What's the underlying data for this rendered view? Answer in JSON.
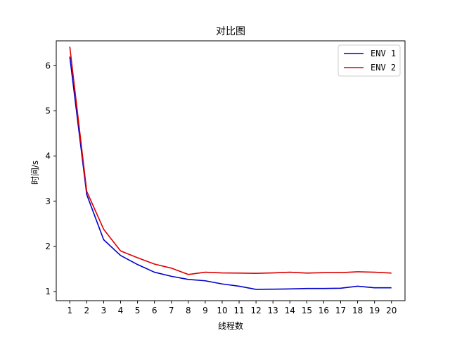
{
  "chart_data": {
    "type": "line",
    "title": "对比图",
    "xlabel": "线程数",
    "ylabel": "时间/s",
    "x": [
      1,
      2,
      3,
      4,
      5,
      6,
      7,
      8,
      9,
      10,
      11,
      12,
      13,
      14,
      15,
      16,
      17,
      18,
      19,
      20
    ],
    "xlim": [
      0.2,
      20.8
    ],
    "ylim": [
      0.8,
      6.55
    ],
    "yticks": [
      1,
      2,
      3,
      4,
      5,
      6
    ],
    "grid": false,
    "legend_position": "top-right",
    "series": [
      {
        "name": "ENV 1",
        "color": "#0000cc",
        "values": [
          6.2,
          3.15,
          2.15,
          1.8,
          1.6,
          1.43,
          1.34,
          1.27,
          1.24,
          1.17,
          1.12,
          1.05,
          1.055,
          1.06,
          1.07,
          1.07,
          1.075,
          1.12,
          1.085,
          1.085
        ]
      },
      {
        "name": "ENV 2",
        "color": "#dd0000",
        "values": [
          6.42,
          3.22,
          2.38,
          1.9,
          1.75,
          1.61,
          1.52,
          1.38,
          1.43,
          1.415,
          1.41,
          1.405,
          1.415,
          1.43,
          1.41,
          1.42,
          1.42,
          1.44,
          1.43,
          1.41
        ]
      }
    ]
  }
}
